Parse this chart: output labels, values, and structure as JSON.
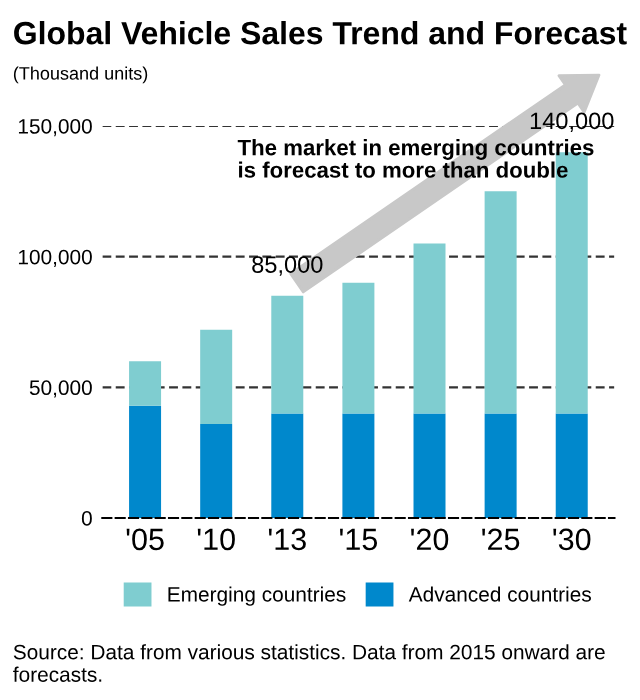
{
  "chart_data": {
    "type": "bar",
    "title": "Global Vehicle Sales Trend and Forecast",
    "subtitle": "(Thousand units)",
    "categories": [
      "'05",
      "'10",
      "'13",
      "'15",
      "'20",
      "'25",
      "'30"
    ],
    "stacked": true,
    "series": [
      {
        "name": "Advanced countries",
        "color": "#0088cc",
        "values": [
          43000,
          36000,
          40000,
          40000,
          40000,
          40000,
          40000
        ]
      },
      {
        "name": "Emerging countries",
        "color": "#7fcdd0",
        "values": [
          17000,
          36000,
          45000,
          50000,
          65000,
          85000,
          100000
        ]
      }
    ],
    "totals": [
      null,
      null,
      "85,000",
      null,
      null,
      null,
      "140,000"
    ],
    "ylim": [
      0,
      150000
    ],
    "yticks": [
      0,
      {
        "value": 50000,
        "label": "50,000"
      },
      {
        "value": 100000,
        "label": "100,000"
      },
      {
        "value": 150000,
        "label": "150,000"
      }
    ],
    "grid": "y",
    "legend": "bottom",
    "annotations": [
      "The market in emerging countries\nis forecast to more than double",
      "Source: Data from various statistics. Data from 2015 onward are forecasts."
    ]
  }
}
